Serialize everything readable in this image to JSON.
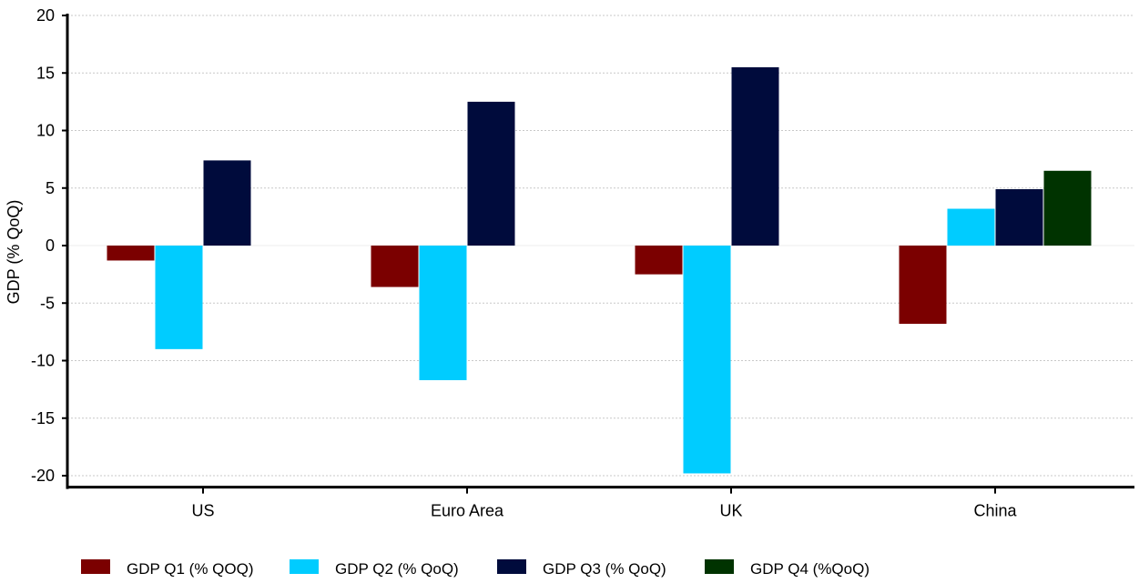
{
  "chart_data": {
    "type": "bar",
    "ylabel": "GDP (% QoQ)",
    "xlabel": "",
    "ylim": [
      -21,
      20
    ],
    "yticks": [
      20,
      15,
      10,
      5,
      0,
      -5,
      -10,
      -15,
      -20
    ],
    "grid": true,
    "legend_position": "bottom",
    "categories": [
      "US",
      "Euro Area",
      "UK",
      "China"
    ],
    "series": [
      {
        "name": "GDP Q1 (% QOQ)",
        "color": "#7b0000",
        "values": [
          -1.3,
          -3.6,
          -2.5,
          -6.8
        ]
      },
      {
        "name": "GDP Q2 (% QoQ)",
        "color": "#00ccff",
        "values": [
          -9.0,
          -11.7,
          -19.8,
          3.2
        ]
      },
      {
        "name": "GDP Q3 (% QoQ)",
        "color": "#000b3c",
        "values": [
          7.4,
          12.5,
          15.5,
          4.9
        ]
      },
      {
        "name": "GDP Q4 (%QoQ)",
        "color": "#003300",
        "values": [
          null,
          null,
          null,
          6.5
        ]
      }
    ]
  }
}
